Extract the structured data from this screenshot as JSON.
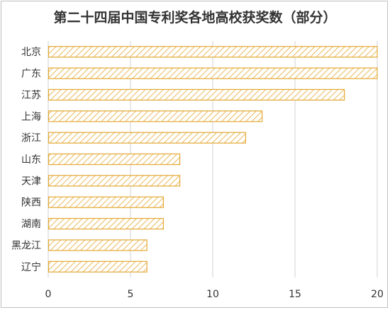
{
  "chart_data": {
    "type": "bar",
    "orientation": "horizontal",
    "title": "第二十四届中国专利奖各地高校获奖数（部分）",
    "categories": [
      "北京",
      "广东",
      "江苏",
      "上海",
      "浙江",
      "山东",
      "天津",
      "陕西",
      "湖南",
      "黑龙江",
      "辽宁"
    ],
    "values": [
      20,
      20,
      18,
      13,
      12,
      8,
      8,
      7,
      7,
      6,
      6
    ],
    "xlim": [
      0,
      20
    ],
    "xticks": [
      "0",
      "5",
      "10",
      "15",
      "20"
    ],
    "xlabel": "",
    "ylabel": "",
    "grid": "vertical",
    "bar_fill": "hatched",
    "colors": {
      "bar_stroke": "#e3a832",
      "hatch": "#e3a832"
    }
  }
}
